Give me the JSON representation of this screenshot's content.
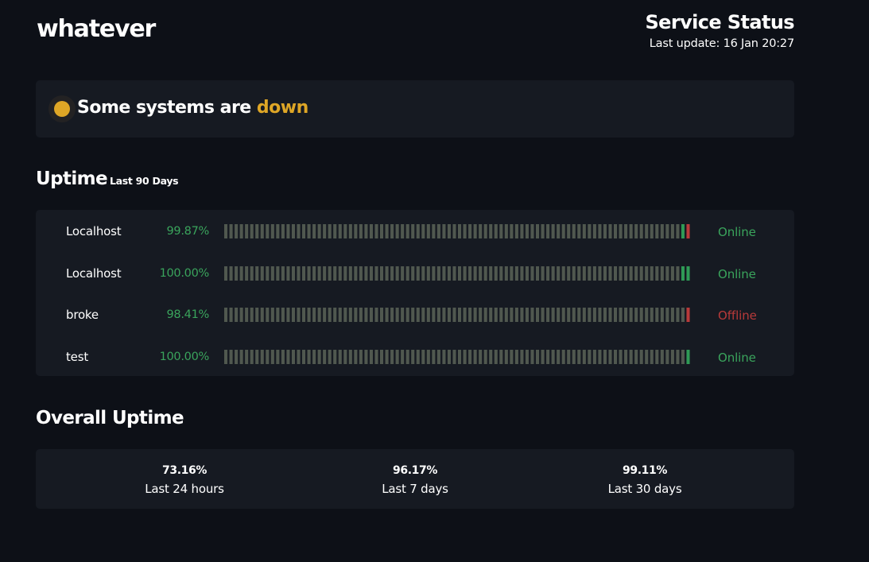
{
  "header": {
    "brand": "whatever",
    "service_title": "Service Status",
    "last_update": "Last update: 16 Jan 20:27"
  },
  "banner": {
    "text_prefix": "Some systems are ",
    "text_status": "down",
    "status_color": "#dea626"
  },
  "uptime": {
    "title": "Uptime",
    "subtitle": "Last 90 Days",
    "monitors": [
      {
        "name": "Localhost",
        "percent": "99.87%",
        "status": "Online",
        "status_color": "#3aa45c",
        "days": [
          "n",
          "n",
          "n",
          "n",
          "n",
          "n",
          "n",
          "n",
          "n",
          "n",
          "n",
          "n",
          "n",
          "n",
          "n",
          "n",
          "n",
          "n",
          "n",
          "n",
          "n",
          "n",
          "n",
          "n",
          "n",
          "n",
          "n",
          "n",
          "n",
          "n",
          "n",
          "n",
          "n",
          "n",
          "n",
          "n",
          "n",
          "n",
          "n",
          "n",
          "n",
          "n",
          "n",
          "n",
          "n",
          "n",
          "n",
          "n",
          "n",
          "n",
          "n",
          "n",
          "n",
          "n",
          "n",
          "n",
          "n",
          "n",
          "n",
          "n",
          "n",
          "n",
          "n",
          "n",
          "n",
          "n",
          "n",
          "n",
          "n",
          "n",
          "n",
          "n",
          "n",
          "n",
          "n",
          "n",
          "n",
          "n",
          "n",
          "n",
          "n",
          "n",
          "n",
          "n",
          "n",
          "n",
          "n",
          "n",
          "u",
          "d"
        ]
      },
      {
        "name": "Localhost",
        "percent": "100.00%",
        "status": "Online",
        "status_color": "#3aa45c",
        "days": [
          "n",
          "n",
          "n",
          "n",
          "n",
          "n",
          "n",
          "n",
          "n",
          "n",
          "n",
          "n",
          "n",
          "n",
          "n",
          "n",
          "n",
          "n",
          "n",
          "n",
          "n",
          "n",
          "n",
          "n",
          "n",
          "n",
          "n",
          "n",
          "n",
          "n",
          "n",
          "n",
          "n",
          "n",
          "n",
          "n",
          "n",
          "n",
          "n",
          "n",
          "n",
          "n",
          "n",
          "n",
          "n",
          "n",
          "n",
          "n",
          "n",
          "n",
          "n",
          "n",
          "n",
          "n",
          "n",
          "n",
          "n",
          "n",
          "n",
          "n",
          "n",
          "n",
          "n",
          "n",
          "n",
          "n",
          "n",
          "n",
          "n",
          "n",
          "n",
          "n",
          "n",
          "n",
          "n",
          "n",
          "n",
          "n",
          "n",
          "n",
          "n",
          "n",
          "n",
          "n",
          "n",
          "n",
          "n",
          "n",
          "u",
          "u"
        ]
      },
      {
        "name": "broke",
        "percent": "98.41%",
        "status": "Offline",
        "status_color": "#b83a3a",
        "days": [
          "n",
          "n",
          "n",
          "n",
          "n",
          "n",
          "n",
          "n",
          "n",
          "n",
          "n",
          "n",
          "n",
          "n",
          "n",
          "n",
          "n",
          "n",
          "n",
          "n",
          "n",
          "n",
          "n",
          "n",
          "n",
          "n",
          "n",
          "n",
          "n",
          "n",
          "n",
          "n",
          "n",
          "n",
          "n",
          "n",
          "n",
          "n",
          "n",
          "n",
          "n",
          "n",
          "n",
          "n",
          "n",
          "n",
          "n",
          "n",
          "n",
          "n",
          "n",
          "n",
          "n",
          "n",
          "n",
          "n",
          "n",
          "n",
          "n",
          "n",
          "n",
          "n",
          "n",
          "n",
          "n",
          "n",
          "n",
          "n",
          "n",
          "n",
          "n",
          "n",
          "n",
          "n",
          "n",
          "n",
          "n",
          "n",
          "n",
          "n",
          "n",
          "n",
          "n",
          "n",
          "n",
          "n",
          "n",
          "n",
          "n",
          "d"
        ]
      },
      {
        "name": "test",
        "percent": "100.00%",
        "status": "Online",
        "status_color": "#3aa45c",
        "days": [
          "n",
          "n",
          "n",
          "n",
          "n",
          "n",
          "n",
          "n",
          "n",
          "n",
          "n",
          "n",
          "n",
          "n",
          "n",
          "n",
          "n",
          "n",
          "n",
          "n",
          "n",
          "n",
          "n",
          "n",
          "n",
          "n",
          "n",
          "n",
          "n",
          "n",
          "n",
          "n",
          "n",
          "n",
          "n",
          "n",
          "n",
          "n",
          "n",
          "n",
          "n",
          "n",
          "n",
          "n",
          "n",
          "n",
          "n",
          "n",
          "n",
          "n",
          "n",
          "n",
          "n",
          "n",
          "n",
          "n",
          "n",
          "n",
          "n",
          "n",
          "n",
          "n",
          "n",
          "n",
          "n",
          "n",
          "n",
          "n",
          "n",
          "n",
          "n",
          "n",
          "n",
          "n",
          "n",
          "n",
          "n",
          "n",
          "n",
          "n",
          "n",
          "n",
          "n",
          "n",
          "n",
          "n",
          "n",
          "n",
          "n",
          "u"
        ]
      }
    ],
    "legend_colors": {
      "n": "#50584f",
      "u": "#2f9a56",
      "d": "#b83a3a"
    }
  },
  "overall": {
    "title": "Overall Uptime",
    "stats": [
      {
        "value": "73.16%",
        "label": "Last 24 hours"
      },
      {
        "value": "96.17%",
        "label": "Last 7 days"
      },
      {
        "value": "99.11%",
        "label": "Last 30 days"
      }
    ]
  }
}
